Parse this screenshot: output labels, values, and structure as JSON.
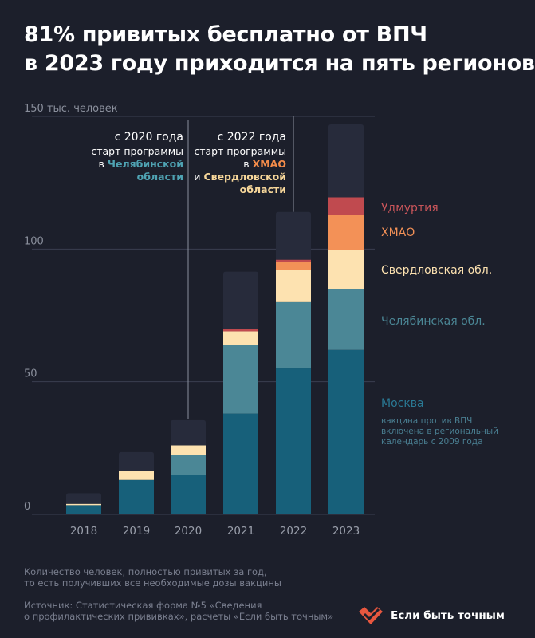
{
  "title": {
    "line1": "81% привитых бесплатно от ВПЧ",
    "line2": "в 2023 году приходится на пять регионов"
  },
  "annotations": {
    "a2020": {
      "line1": "с 2020 года",
      "line2": "старт программы",
      "line3_prefix": "в",
      "line3_region": "Челябинской",
      "line4_region": "области"
    },
    "a2022": {
      "line1": "с 2022 года",
      "line2": "старт программы",
      "line3_prefix": "в",
      "line3_region": "ХМАО",
      "line4_prefix": "и",
      "line4_region": "Свердловской",
      "line5_region": "области"
    }
  },
  "series_labels": {
    "udm": "Удмуртия",
    "khmao": "ХМАО",
    "sverd": "Свердловская обл.",
    "chel": "Челябинская обл.",
    "moscow": "Москва",
    "moscow_note": [
      "вакцина против ВПЧ",
      "включена в региональный",
      "календарь с 2009 года"
    ]
  },
  "footer": {
    "note_line1": "Количество человек, полностью привитых за год,",
    "note_line2": "то есть получивших все необходимые дозы вакцины",
    "source_line1": "Источник: Статистическая форма №5 «Сведения",
    "source_line2": "о профилактических прививках», расчеты «Если быть точным»"
  },
  "logo": {
    "text": "Если быть точным",
    "icon": "heart-checkmark-icon"
  },
  "colors": {
    "background": "#1c1f2b",
    "moscow": "#17607a",
    "chel": "#4b8796",
    "sverd": "#fde2b0",
    "khmao": "#f39157",
    "udm": "#c04a4f",
    "other": "#272b3b",
    "grid": "#3a3f50",
    "annotation_line": "#8a8f9c"
  },
  "chart_data": {
    "type": "bar",
    "stacked": true,
    "categories": [
      "2018",
      "2019",
      "2020",
      "2021",
      "2022",
      "2023"
    ],
    "ylabel": "тыс. человек",
    "ylim": [
      0,
      150
    ],
    "yticks": [
      0,
      50,
      100,
      150
    ],
    "ytick_labels": [
      "0",
      "50",
      "100",
      "150 тыс. человек"
    ],
    "series": [
      {
        "name": "Москва",
        "color": "#17607a",
        "values": [
          3.5,
          13,
          15,
          38,
          55,
          62
        ]
      },
      {
        "name": "Челябинская обл.",
        "color": "#4b8796",
        "values": [
          0,
          0,
          7.5,
          26,
          25,
          23
        ]
      },
      {
        "name": "Свердловская обл.",
        "color": "#fde2b0",
        "values": [
          0.5,
          3.5,
          3.5,
          5,
          12,
          14.5
        ]
      },
      {
        "name": "ХМАО",
        "color": "#f39157",
        "values": [
          0,
          0,
          0,
          0,
          3,
          13.5
        ]
      },
      {
        "name": "Удмуртия",
        "color": "#c04a4f",
        "values": [
          0,
          0,
          0,
          1,
          1,
          6.5
        ]
      },
      {
        "name": "",
        "color": "#272b3b",
        "values": [
          4,
          7,
          9.5,
          21.5,
          18,
          27.5
        ]
      }
    ]
  }
}
